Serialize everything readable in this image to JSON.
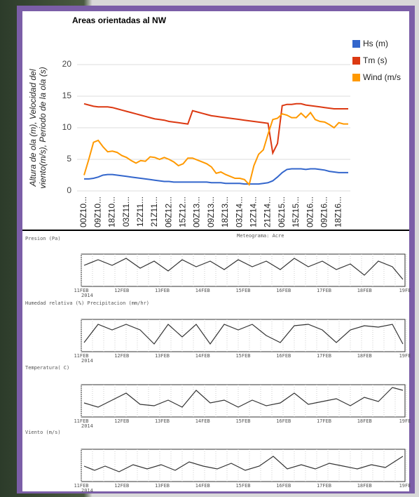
{
  "chart_data": {
    "type": "line",
    "title": "Areas orientadas al NW",
    "y_label": [
      "Altura de ola (m), Velocidad del",
      "viento(m/s), Periodo de la ola (s)"
    ],
    "categories": [
      "00Z10...",
      null,
      null,
      "09Z10...",
      null,
      null,
      "18Z10...",
      null,
      null,
      "03Z11...",
      null,
      null,
      "12Z11...",
      null,
      null,
      "21Z11...",
      null,
      null,
      "06Z12...",
      null,
      null,
      "15Z12...",
      null,
      null,
      "00Z13...",
      null,
      null,
      "09Z13...",
      null,
      null,
      "18Z13...",
      null,
      null,
      "03Z14...",
      null,
      null,
      "12Z14...",
      null,
      null,
      "21Z14...",
      null,
      null,
      "06Z15...",
      null,
      null,
      "15Z15...",
      null,
      null,
      "00Z16...",
      null,
      null,
      "09Z16...",
      null,
      null,
      "18Z16...",
      null,
      null
    ],
    "series": [
      {
        "name": "Hs (m)",
        "color": "#3366cc",
        "values": [
          1.9,
          1.9,
          2.0,
          2.2,
          2.5,
          2.6,
          2.6,
          2.5,
          2.4,
          2.3,
          2.2,
          2.1,
          2.0,
          1.9,
          1.8,
          1.7,
          1.6,
          1.5,
          1.5,
          1.4,
          1.4,
          1.4,
          1.4,
          1.4,
          1.4,
          1.4,
          1.4,
          1.3,
          1.3,
          1.3,
          1.2,
          1.2,
          1.2,
          1.2,
          1.1,
          1.1,
          1.1,
          1.1,
          1.2,
          1.3,
          1.6,
          2.2,
          2.9,
          3.4,
          3.5,
          3.5,
          3.5,
          3.4,
          3.5,
          3.5,
          3.4,
          3.3,
          3.1,
          3.0,
          2.9,
          2.9,
          2.9
        ]
      },
      {
        "name": "Tm (s)",
        "color": "#dc3912",
        "values": [
          13.8,
          13.6,
          13.4,
          13.3,
          13.3,
          13.3,
          13.2,
          13.0,
          12.8,
          12.6,
          12.4,
          12.2,
          12.0,
          11.8,
          11.6,
          11.4,
          11.3,
          11.2,
          11.0,
          10.9,
          10.8,
          10.7,
          10.6,
          12.7,
          12.5,
          12.3,
          12.1,
          11.9,
          11.8,
          11.7,
          11.6,
          11.5,
          11.4,
          11.3,
          11.2,
          11.1,
          11.0,
          10.9,
          10.8,
          10.7,
          6.0,
          7.5,
          13.5,
          13.7,
          13.7,
          13.8,
          13.8,
          13.6,
          13.5,
          13.4,
          13.3,
          13.2,
          13.1,
          13.0,
          13.0,
          13.0,
          13.0
        ]
      },
      {
        "name": "Wind (m/s",
        "color": "#ff9900",
        "values": [
          2.5,
          5.0,
          7.7,
          8.0,
          7.0,
          6.2,
          6.3,
          6.1,
          5.6,
          5.3,
          4.8,
          4.4,
          4.8,
          4.7,
          5.4,
          5.3,
          5.0,
          5.3,
          5.0,
          4.6,
          4.0,
          4.3,
          5.2,
          5.2,
          4.9,
          4.6,
          4.3,
          3.8,
          2.8,
          3.0,
          2.6,
          2.3,
          2.0,
          2.0,
          1.8,
          1.0,
          4.0,
          5.8,
          6.5,
          9.0,
          11.3,
          11.5,
          12.2,
          12.0,
          11.6,
          11.6,
          12.3,
          11.6,
          12.4,
          11.3,
          11.0,
          10.9,
          10.5,
          10.0,
          10.8,
          10.6,
          10.6
        ]
      }
    ],
    "ylim": [
      0,
      20
    ],
    "yticks": [
      0,
      5,
      10,
      15,
      20
    ],
    "grid": true
  },
  "meteogram": {
    "title": "Meteograma: Acre",
    "panels": [
      "Presion (Pa)",
      "Humedad relativa (%) Precipitacion (mm/hr)",
      "Temperatura( C)",
      "Viento (m/s)"
    ],
    "dates": [
      "11FEB",
      "12FEB",
      "13FEB",
      "14FEB",
      "15FEB",
      "16FEB",
      "17FEB",
      "18FEB",
      "19FE"
    ],
    "year": "2014"
  }
}
